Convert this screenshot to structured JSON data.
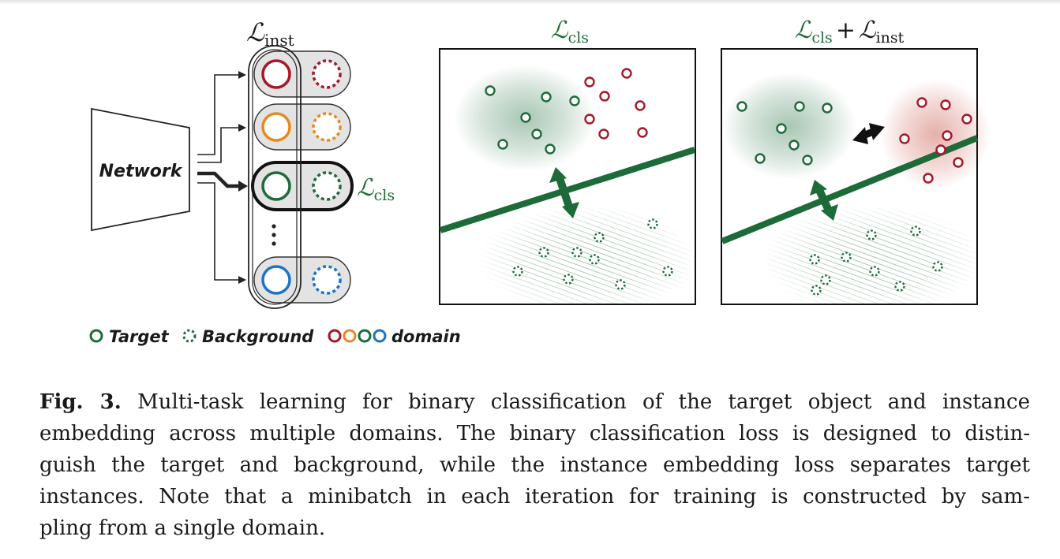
{
  "figure": {
    "network_label": "Network",
    "loss_inst": {
      "main": "ℒ",
      "sub": "inst"
    },
    "loss_cls": {
      "main": "ℒ",
      "sub": "cls"
    },
    "loss_combined": {
      "a_main": "ℒ",
      "a_sub": "cls",
      "plus": "+",
      "b_main": "ℒ",
      "b_sub": "inst"
    },
    "colors": {
      "domain_red": "#a5172a",
      "domain_orange": "#e58a22",
      "domain_green": "#1d6b39",
      "domain_blue": "#1d74c4",
      "loss_green": "#1d6b39",
      "panel_fill": "#e3e3e3",
      "stroke_dark": "#222222"
    },
    "legend": {
      "target": "Target",
      "background": "Background",
      "domain": "domain",
      "domain_colors": [
        "#a5172a",
        "#e58a22",
        "#1d6b39",
        "#1d74c4"
      ]
    }
  },
  "caption": {
    "label": "Fig. 3.",
    "lines": [
      "Multi-task learning for binary classification of the target object and instance",
      "embedding across multiple domains. The binary classification loss is designed to distin-",
      "guish the target and background, while the instance embedding loss separates target",
      "instances. Note that a minibatch in each iteration for training is constructed by sam-",
      "pling from a single domain."
    ]
  }
}
